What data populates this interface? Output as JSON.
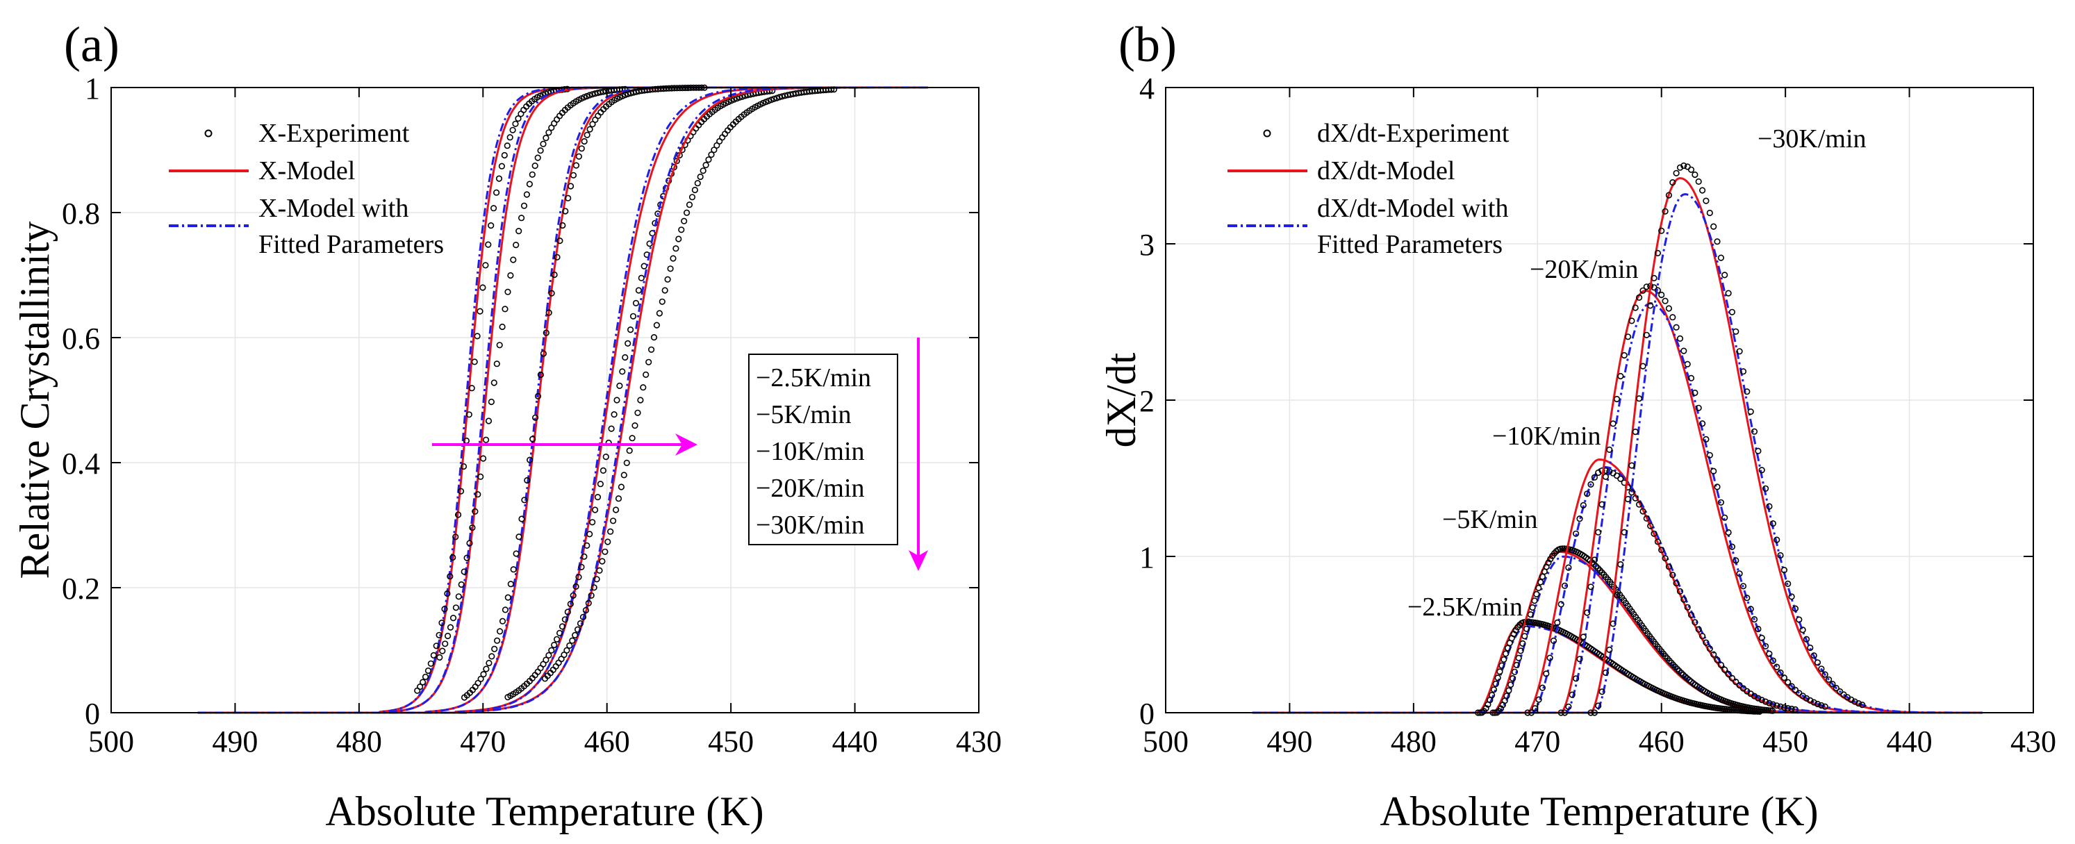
{
  "chart_data": [
    {
      "type": "line",
      "panel_label": "(a)",
      "xlabel": "Absolute Temperature (K)",
      "ylabel": "Relative Crystallinity",
      "xlim": [
        500,
        430
      ],
      "ylim": [
        0,
        1
      ],
      "xticks": [
        500,
        490,
        480,
        470,
        460,
        450,
        440,
        430
      ],
      "yticks": [
        0,
        0.2,
        0.4,
        0.6,
        0.8,
        1
      ],
      "ytick_labels": [
        "0",
        "0.2",
        "0.4",
        "0.6",
        "0.8",
        "1"
      ],
      "legend": [
        "X-Experiment",
        "X-Model",
        "X-Model with",
        "Fitted Parameters"
      ],
      "rate_box": [
        "−2.5K/min",
        "−5K/min",
        "−10K/min",
        "−20K/min",
        "−30K/min"
      ],
      "curves": [
        {
          "name": "−2.5K/min",
          "t_half": 471.2,
          "width": 1.1,
          "exp_t_half": 471.0,
          "exp_width": 1.3,
          "x_start": 475.3,
          "x_end": 463.0
        },
        {
          "name": "−5K/min",
          "t_half": 469.8,
          "width": 1.2,
          "exp_t_half": 469.3,
          "exp_width": 1.8,
          "x_start": 473.5,
          "x_end": 458.5
        },
        {
          "name": "−10K/min",
          "t_half": 465.5,
          "width": 1.4,
          "exp_t_half": 465.6,
          "exp_width": 1.6,
          "x_start": 471.5,
          "x_end": 452.0
        },
        {
          "name": "−20K/min",
          "t_half": 459.9,
          "width": 1.9,
          "exp_t_half": 459.2,
          "exp_width": 2.4,
          "x_start": 468.0,
          "x_end": 446.5
        },
        {
          "name": "−30K/min",
          "t_half": 458.4,
          "width": 2.0,
          "exp_t_half": 457.3,
          "exp_width": 2.7,
          "x_start": 465.0,
          "x_end": 441.5
        }
      ],
      "model_range": [
        493,
        434
      ]
    },
    {
      "type": "line",
      "panel_label": "(b)",
      "xlabel": "Absolute Temperature (K)",
      "ylabel": "dX/dt",
      "xlim": [
        500,
        430
      ],
      "ylim": [
        0,
        4
      ],
      "xticks": [
        500,
        490,
        480,
        470,
        460,
        450,
        440,
        430
      ],
      "yticks": [
        0,
        1,
        2,
        3,
        4
      ],
      "ytick_labels": [
        "0",
        "1",
        "2",
        "3",
        "4"
      ],
      "legend": [
        "dX/dt-Experiment",
        "dX/dt-Model",
        "dX/dt-Model with",
        "Fitted Parameters"
      ],
      "peaks": [
        {
          "name": "−2.5K/min",
          "onset": 474.8,
          "peak_t": 471.3,
          "peak_model": 0.57,
          "peak_exp": 0.58,
          "end": 452.0
        },
        {
          "name": "−5K/min",
          "onset": 473.6,
          "peak_t": 468.3,
          "peak_model": 1.03,
          "peak_exp": 1.05,
          "end": 451.0
        },
        {
          "name": "−10K/min",
          "onset": 470.8,
          "peak_t": 465.0,
          "peak_model": 1.62,
          "peak_exp": 1.55,
          "end": 449.0
        },
        {
          "name": "−20K/min",
          "onset": 468.1,
          "peak_t": 461.3,
          "peak_model": 2.7,
          "peak_exp": 2.73,
          "end": 446.5
        },
        {
          "name": "−30K/min",
          "onset": 465.7,
          "peak_t": 458.5,
          "peak_model": 3.42,
          "peak_exp": 3.5,
          "end": 443.5
        }
      ],
      "model_range": [
        493,
        434
      ]
    }
  ],
  "colors": {
    "experiment": "#000000",
    "model": "#e8141c",
    "fitted": "#1e1ee6",
    "arrow": "#ff00ff"
  }
}
